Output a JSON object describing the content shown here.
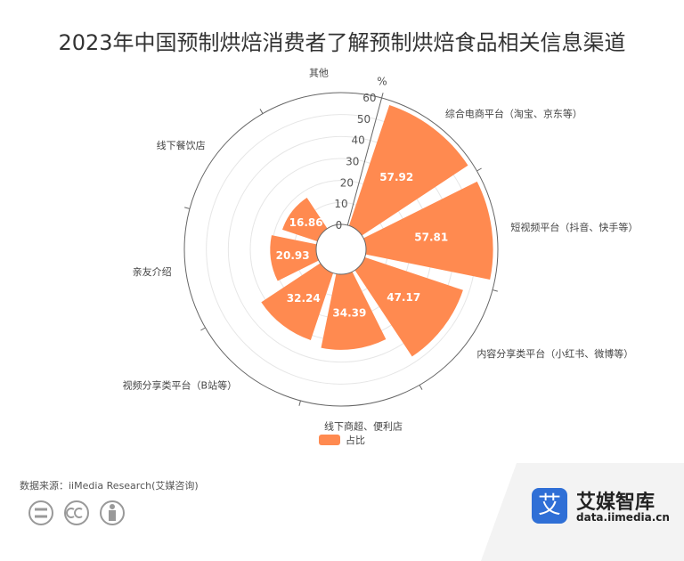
{
  "title": "2023年中国预制烘焙消费者了解预制烘焙食品相关信息渠道",
  "source": "数据来源：iiMedia Research(艾媒咨询)",
  "brand": {
    "logo_char": "艾",
    "name": "艾媒智库",
    "url": "data.iimedia.cn"
  },
  "cc_icons": [
    "equals-icon",
    "cc-icon",
    "person-icon"
  ],
  "colors": {
    "bar": "#ff8a50",
    "axis": "#666666",
    "grid": "#e6e6e6",
    "label": "#ffffff"
  },
  "chart_data": {
    "type": "bar",
    "coordinate": "polar",
    "categories": [
      "综合电商平台（淘宝、京东等）",
      "短视频平台（抖音、快手等）",
      "内容分享类平台（小红书、微博等）",
      "线下商超、便利店",
      "视频分享类平台（B站等）",
      "亲友介绍",
      "线下餐饮店",
      "其他"
    ],
    "series": [
      {
        "name": "占比",
        "values": [
          57.92,
          57.81,
          47.17,
          34.39,
          32.24,
          20.93,
          16.86,
          0.11
        ]
      }
    ],
    "radial_axis": {
      "min": 0,
      "max": 60,
      "ticks": [
        0,
        10,
        20,
        30,
        40,
        50,
        60
      ],
      "unit": "%"
    },
    "legend": "bottom-center",
    "grid": true
  }
}
